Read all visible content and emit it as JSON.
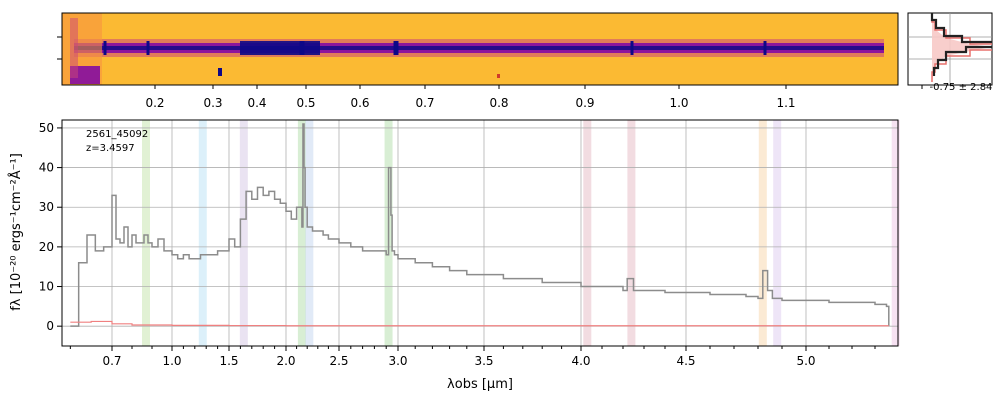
{
  "chart_data": [
    {
      "type": "heatmap",
      "description_tag": "2d-spectrum",
      "top_tick_labels": [
        "0.2",
        "0.3",
        "0.4",
        "0.5",
        "0.6",
        "0.7",
        "0.8",
        "0.9",
        "1.0",
        "1.1"
      ],
      "colormap": [
        "#0d0887",
        "#7e03a8",
        "#cc4778",
        "#f89540",
        "#fdb42f",
        "#fcc030"
      ]
    },
    {
      "type": "line",
      "description_tag": "cross-dispersion-profile",
      "label": "-0.75 ± 2.84",
      "colors": {
        "data": "#222222",
        "model": "#e8716d",
        "fill": "#f7c9c7",
        "guides": "#888888"
      }
    },
    {
      "type": "line",
      "description_tag": "1d-spectrum",
      "annotation_id": "2561_45092",
      "annotation_z": "z=3.4597",
      "xlabel": "λobs [μm]",
      "ylabel": "fλ [10⁻²⁰ ergs⁻¹cm⁻²Å⁻¹]",
      "xlim": [
        0.58,
        5.4
      ],
      "ylim": [
        -5,
        52
      ],
      "x_tick_labels": [
        "0.7",
        "1.0",
        "1.5",
        "2.0",
        "2.5",
        "3.0",
        "3.5",
        "4.0",
        "4.5",
        "5.0"
      ],
      "x_ticks": [
        0.7,
        1.0,
        1.5,
        2.0,
        2.5,
        3.0,
        3.5,
        4.0,
        4.5,
        5.0
      ],
      "y_tick_labels": [
        "0",
        "10",
        "20",
        "30",
        "40",
        "50"
      ],
      "y_ticks": [
        0,
        10,
        20,
        30,
        40,
        50
      ],
      "series": [
        {
          "color": "#8c8c8c",
          "x": [
            0.6,
            0.62,
            0.64,
            0.66,
            0.68,
            0.7,
            0.72,
            0.74,
            0.76,
            0.78,
            0.8,
            0.82,
            0.84,
            0.86,
            0.88,
            0.9,
            0.93,
            0.96,
            1.0,
            1.05,
            1.1,
            1.15,
            1.2,
            1.25,
            1.3,
            1.35,
            1.4,
            1.45,
            1.5,
            1.55,
            1.6,
            1.65,
            1.7,
            1.75,
            1.8,
            1.85,
            1.9,
            1.95,
            2.0,
            2.05,
            2.1,
            2.15,
            2.16,
            2.17,
            2.18,
            2.2,
            2.25,
            2.3,
            2.35,
            2.4,
            2.5,
            2.6,
            2.7,
            2.8,
            2.9,
            2.92,
            2.94,
            2.95,
            2.97,
            3.0,
            3.1,
            3.2,
            3.3,
            3.4,
            3.5,
            3.6,
            3.7,
            3.8,
            3.9,
            4.0,
            4.05,
            4.1,
            4.15,
            4.2,
            4.22,
            4.25,
            4.3,
            4.4,
            4.5,
            4.6,
            4.7,
            4.75,
            4.8,
            4.82,
            4.84,
            4.86,
            4.9,
            5.0,
            5.1,
            5.2,
            5.3,
            5.35,
            5.36
          ],
          "y": [
            0,
            16,
            23,
            19,
            20,
            33,
            22,
            21,
            25,
            20,
            23,
            21,
            21,
            23,
            21,
            20,
            22,
            19,
            18,
            17,
            18,
            17,
            17,
            18,
            18,
            18,
            19,
            19,
            22,
            20,
            27,
            34,
            32,
            35,
            33,
            34,
            32,
            31,
            29,
            27,
            30,
            25,
            51,
            40,
            30,
            25,
            24,
            24,
            23,
            22,
            21,
            20,
            19,
            19,
            18,
            40,
            28,
            19,
            18,
            17,
            16,
            15,
            14,
            13,
            13,
            12,
            12,
            11,
            11,
            10,
            10,
            10,
            10,
            9,
            12,
            9,
            9,
            8.5,
            8.5,
            8,
            8,
            7.5,
            7,
            14,
            9,
            7,
            6.5,
            6.5,
            6,
            6,
            5.5,
            5,
            0
          ]
        },
        {
          "color": "#f08080",
          "x": [
            0.6,
            0.65,
            0.7,
            0.8,
            1.0,
            1.5,
            2.0,
            3.0,
            4.0,
            5.0,
            5.36
          ],
          "y": [
            1.0,
            1.2,
            0.6,
            0.3,
            0.2,
            0.15,
            0.1,
            0.1,
            0.1,
            0.1,
            0.1
          ]
        }
      ],
      "line_bands": [
        {
          "x": 0.87,
          "color": "#c8e6b0"
        },
        {
          "x": 1.27,
          "color": "#bfe3f5"
        },
        {
          "x": 1.63,
          "color": "#d9cce8"
        },
        {
          "x": 2.15,
          "color": "#b8e0b0"
        },
        {
          "x": 2.22,
          "color": "#c8d8f0"
        },
        {
          "x": 2.92,
          "color": "#b8e0b0"
        },
        {
          "x": 4.03,
          "color": "#e8c0c8"
        },
        {
          "x": 4.24,
          "color": "#e8c0c8"
        },
        {
          "x": 4.82,
          "color": "#f8d8b0"
        },
        {
          "x": 4.88,
          "color": "#e0d0f0"
        },
        {
          "x": 5.39,
          "color": "#f0c8e8"
        }
      ]
    }
  ]
}
